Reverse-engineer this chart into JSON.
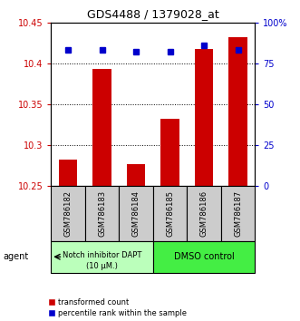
{
  "title": "GDS4488 / 1379028_at",
  "samples": [
    "GSM786182",
    "GSM786183",
    "GSM786184",
    "GSM786185",
    "GSM786186",
    "GSM786187"
  ],
  "red_values": [
    10.283,
    10.393,
    10.277,
    10.332,
    10.418,
    10.432
  ],
  "blue_values": [
    83,
    83,
    82,
    82,
    86,
    83
  ],
  "ylim_left": [
    10.25,
    10.45
  ],
  "ylim_right": [
    0,
    100
  ],
  "yticks_left": [
    10.25,
    10.3,
    10.35,
    10.4,
    10.45
  ],
  "yticks_right": [
    0,
    25,
    50,
    75,
    100
  ],
  "ytick_labels_right": [
    "0",
    "25",
    "50",
    "75",
    "100%"
  ],
  "bar_color": "#cc0000",
  "dot_color": "#0000cc",
  "group1_label_line1": "Notch inhibitor DAPT",
  "group1_label_line2": "(10 μM.)",
  "group2_label": "DMSO control",
  "group1_color": "#bbffbb",
  "group2_color": "#44ee44",
  "agent_label": "agent",
  "legend_red": "transformed count",
  "legend_blue": "percentile rank within the sample",
  "left_label_color": "#cc0000",
  "right_label_color": "#0000cc",
  "tick_area_bg": "#cccccc",
  "bar_width": 0.55
}
